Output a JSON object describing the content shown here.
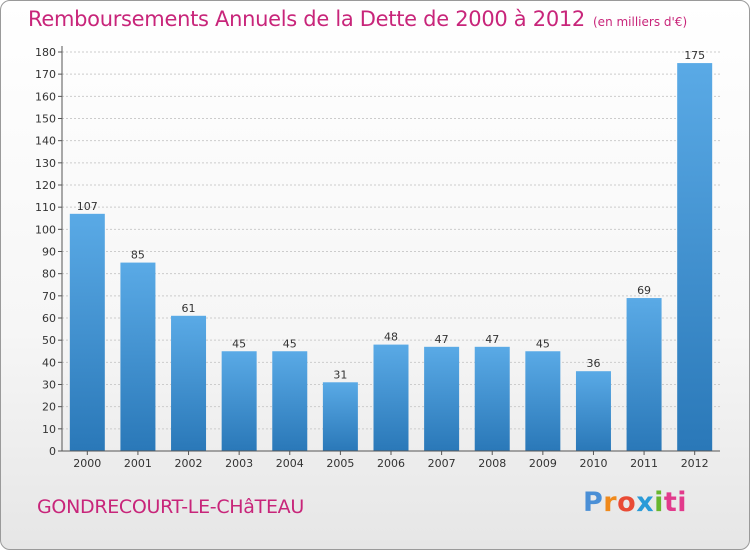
{
  "title": "Remboursements Annuels de la Dette de 2000 à 2012",
  "subtitle": "(en milliers d'€)",
  "place_name": "GONDRECOURT-LE-CHâTEAU",
  "logo": {
    "p1": "P",
    "p2": "r",
    "p3": "o",
    "p4": "x",
    "p5": "i",
    "p6": "ti"
  },
  "colors": {
    "title": "#c8257a",
    "bar_top": "#5aaae6",
    "bar_bottom": "#2a78b8",
    "grid": "#cccccc"
  },
  "chart_data": {
    "type": "bar",
    "categories": [
      "2000",
      "2001",
      "2002",
      "2003",
      "2004",
      "2005",
      "2006",
      "2007",
      "2008",
      "2009",
      "2010",
      "2011",
      "2012"
    ],
    "values": [
      107,
      85,
      61,
      45,
      45,
      31,
      48,
      47,
      47,
      45,
      36,
      69,
      175
    ],
    "ylim": [
      0,
      180
    ],
    "yticks": [
      0,
      10,
      20,
      30,
      40,
      50,
      60,
      70,
      80,
      90,
      100,
      110,
      120,
      130,
      140,
      150,
      160,
      170,
      180
    ],
    "grid": true,
    "xlabel": "",
    "ylabel": ""
  }
}
